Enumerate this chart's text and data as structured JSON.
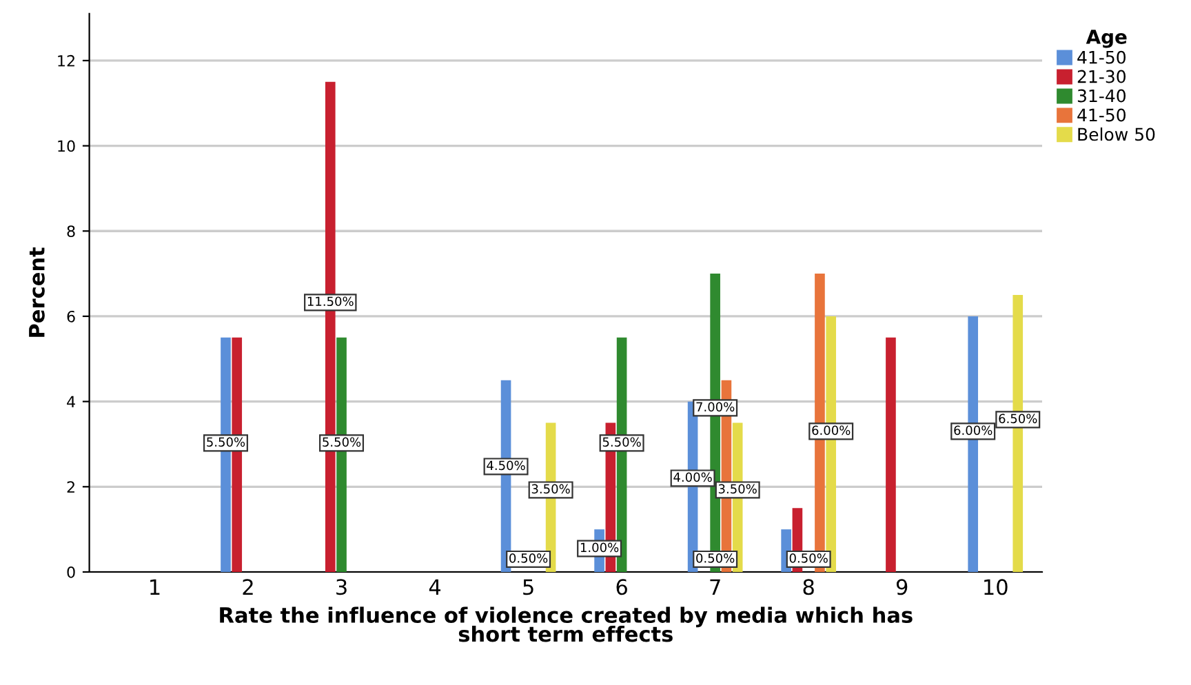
{
  "chart_data": {
    "type": "bar",
    "xlabel": "Rate the influence of violence created by media which has\nshort term effects",
    "ylabel": "Percent",
    "legend_title": "Age",
    "categories": [
      "1",
      "2",
      "3",
      "4",
      "5",
      "6",
      "7",
      "8",
      "9",
      "10"
    ],
    "series": [
      {
        "name": "41-50",
        "color": "#5b8fd9",
        "values": [
          null,
          5.5,
          null,
          null,
          4.5,
          1.0,
          4.0,
          1.0,
          null,
          6.0
        ],
        "value_labels": [
          null,
          "5.50%",
          null,
          null,
          "4.50%",
          "1.00%",
          "4.00%",
          null,
          null,
          "6.00%"
        ]
      },
      {
        "name": "21-30",
        "color": "#c8202f",
        "values": [
          null,
          5.5,
          11.5,
          null,
          null,
          3.5,
          null,
          1.5,
          5.5,
          null
        ],
        "value_labels": [
          null,
          null,
          "11.50%",
          null,
          null,
          null,
          null,
          null,
          null,
          null
        ]
      },
      {
        "name": "31-40",
        "color": "#2f8a2f",
        "values": [
          null,
          null,
          5.5,
          null,
          null,
          5.5,
          7.0,
          null,
          null,
          null
        ],
        "value_labels": [
          null,
          null,
          "5.50%",
          null,
          null,
          "5.50%",
          "7.00%",
          null,
          null,
          null
        ]
      },
      {
        "name": "41-50",
        "color": "#e8743b",
        "values": [
          null,
          null,
          null,
          null,
          null,
          null,
          4.5,
          7.0,
          null,
          null
        ],
        "value_labels": [
          null,
          null,
          null,
          null,
          null,
          null,
          null,
          null,
          null,
          null
        ]
      },
      {
        "name": "Below 50",
        "color": "#e4db4a",
        "values": [
          null,
          null,
          null,
          null,
          3.5,
          null,
          3.5,
          6.0,
          null,
          6.5
        ],
        "value_labels": [
          null,
          null,
          null,
          null,
          "3.50%",
          null,
          "3.50%",
          "6.00%",
          null,
          "6.50%"
        ]
      }
    ],
    "annotations": [
      {
        "text": "0.50%",
        "x": "5",
        "y": 0.3
      },
      {
        "text": "0.50%",
        "x": "7",
        "y": 0.3
      },
      {
        "text": "0.50%",
        "x": "8",
        "y": 0.3
      }
    ],
    "ylim": [
      0,
      13.1
    ],
    "yticks": [
      0,
      2,
      4,
      6,
      8,
      10,
      12
    ],
    "grid": "y",
    "legend": "top right"
  }
}
